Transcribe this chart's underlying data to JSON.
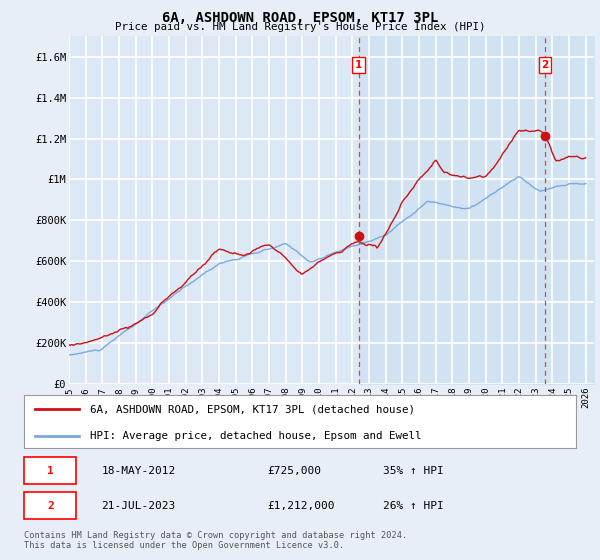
{
  "title": "6A, ASHDOWN ROAD, EPSOM, KT17 3PL",
  "subtitle": "Price paid vs. HM Land Registry's House Price Index (HPI)",
  "ylim": [
    0,
    1700000
  ],
  "yticks": [
    0,
    200000,
    400000,
    600000,
    800000,
    1000000,
    1200000,
    1400000,
    1600000
  ],
  "ytick_labels": [
    "£0",
    "£200K",
    "£400K",
    "£600K",
    "£800K",
    "£1M",
    "£1.2M",
    "£1.4M",
    "£1.6M"
  ],
  "xlim_start": 1995.0,
  "xlim_end": 2026.5,
  "background_color": "#dce8f5",
  "plot_bg_color": "#dce8f5",
  "outer_bg": "#e8eef8",
  "grid_color": "#ffffff",
  "hpi_color": "#7aaadd",
  "price_color": "#cc1111",
  "dashed_line_color": "#dd4444",
  "legend_label_price": "6A, ASHDOWN ROAD, EPSOM, KT17 3PL (detached house)",
  "legend_label_hpi": "HPI: Average price, detached house, Epsom and Ewell",
  "transaction1_date": "18-MAY-2012",
  "transaction1_price": "£725,000",
  "transaction1_hpi": "35% ↑ HPI",
  "transaction1_x": 2012.38,
  "transaction1_y": 725000,
  "transaction2_date": "21-JUL-2023",
  "transaction2_price": "£1,212,000",
  "transaction2_hpi": "26% ↑ HPI",
  "transaction2_x": 2023.55,
  "transaction2_y": 1212000,
  "footer": "Contains HM Land Registry data © Crown copyright and database right 2024.\nThis data is licensed under the Open Government Licence v3.0.",
  "xtick_years": [
    1995,
    1996,
    1997,
    1998,
    1999,
    2000,
    2001,
    2002,
    2003,
    2004,
    2005,
    2006,
    2007,
    2008,
    2009,
    2010,
    2011,
    2012,
    2013,
    2014,
    2015,
    2016,
    2017,
    2018,
    2019,
    2020,
    2021,
    2022,
    2023,
    2024,
    2025,
    2026
  ]
}
